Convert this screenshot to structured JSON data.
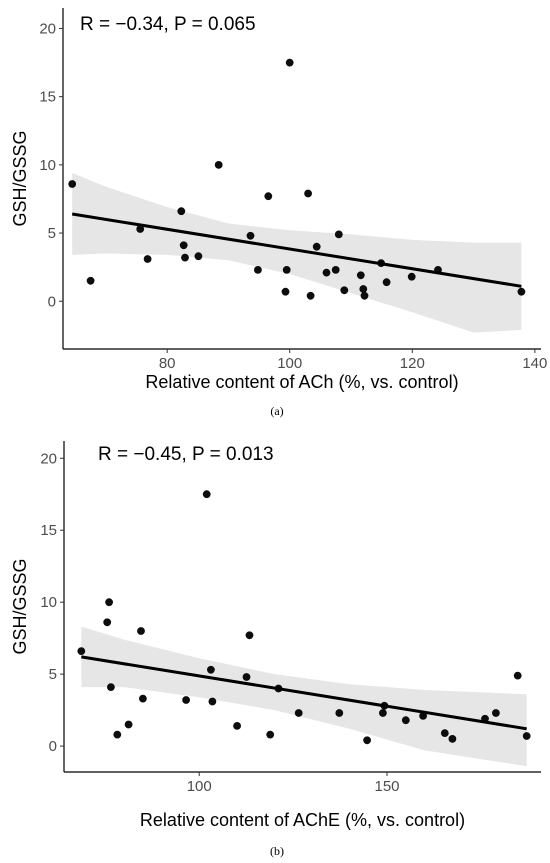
{
  "chart_data": [
    {
      "type": "scatter",
      "panel_label": "(a)",
      "annotation": "R = −0.34, P = 0.065",
      "xlabel": "Relative content of ACh (%, vs. control)",
      "ylabel": "GSH/GSSG",
      "xlim": [
        63,
        141
      ],
      "ylim": [
        -3.5,
        21.5
      ],
      "xticks": [
        80,
        100,
        120,
        140
      ],
      "yticks": [
        0,
        5,
        10,
        15,
        20
      ],
      "trend": {
        "x": [
          64.5,
          137.8
        ],
        "y": [
          6.4,
          1.1
        ]
      },
      "band": {
        "x": [
          64.5,
          70,
          80,
          90,
          100,
          110,
          120,
          130,
          137.8
        ],
        "lower": [
          3.4,
          3.5,
          3.4,
          3.0,
          2.0,
          0.6,
          -0.8,
          -2.3,
          -2.1
        ],
        "upper": [
          9.4,
          8.4,
          6.9,
          5.7,
          5.2,
          4.9,
          4.5,
          4.3,
          4.3
        ]
      },
      "points": [
        [
          64.5,
          8.6
        ],
        [
          67.5,
          1.5
        ],
        [
          75.6,
          5.3
        ],
        [
          76.8,
          3.1
        ],
        [
          82.3,
          6.6
        ],
        [
          82.7,
          4.1
        ],
        [
          82.9,
          3.2
        ],
        [
          85.1,
          3.3
        ],
        [
          88.4,
          10.0
        ],
        [
          93.6,
          4.8
        ],
        [
          94.8,
          2.3
        ],
        [
          96.5,
          7.7
        ],
        [
          99.3,
          0.7
        ],
        [
          99.5,
          2.3
        ],
        [
          100.0,
          17.5
        ],
        [
          103.0,
          7.9
        ],
        [
          103.4,
          0.4
        ],
        [
          104.4,
          4.0
        ],
        [
          106.0,
          2.1
        ],
        [
          107.5,
          2.3
        ],
        [
          108.0,
          4.9
        ],
        [
          108.9,
          0.8
        ],
        [
          111.6,
          1.9
        ],
        [
          112.0,
          0.9
        ],
        [
          112.2,
          0.4
        ],
        [
          114.9,
          2.8
        ],
        [
          115.8,
          1.4
        ],
        [
          119.9,
          1.8
        ],
        [
          124.2,
          2.3
        ],
        [
          137.8,
          0.7
        ]
      ],
      "colors": {
        "points": "#000000",
        "line": "#000000",
        "band": "#e6e6e6"
      }
    },
    {
      "type": "scatter",
      "panel_label": "(b)",
      "annotation": "R = −0.45, P = 0.013",
      "xlabel": "Relative content of AChE (%, vs. control)",
      "ylabel": "GSH/GSSG",
      "xlim": [
        64,
        191
      ],
      "ylim": [
        -1.8,
        21.2
      ],
      "xticks": [
        100,
        150
      ],
      "yticks": [
        0,
        5,
        10,
        15,
        20
      ],
      "trend": {
        "x": [
          68.6,
          187.2
        ],
        "y": [
          6.2,
          1.2
        ]
      },
      "band": {
        "x": [
          68.6,
          80,
          100,
          120,
          140,
          160,
          187.2
        ],
        "lower": [
          4.1,
          4.1,
          3.4,
          2.5,
          1.2,
          -0.3,
          -1.4
        ],
        "upper": [
          8.3,
          7.4,
          6.1,
          5.0,
          4.3,
          3.9,
          3.6
        ]
      },
      "points": [
        [
          68.6,
          6.6
        ],
        [
          75.5,
          8.6
        ],
        [
          76.0,
          10.0
        ],
        [
          76.5,
          4.1
        ],
        [
          78.2,
          0.8
        ],
        [
          81.2,
          1.5
        ],
        [
          84.5,
          8.0
        ],
        [
          85.0,
          3.3
        ],
        [
          96.5,
          3.2
        ],
        [
          102.0,
          17.5
        ],
        [
          103.1,
          5.3
        ],
        [
          103.5,
          3.1
        ],
        [
          110.1,
          1.4
        ],
        [
          112.6,
          4.8
        ],
        [
          113.4,
          7.7
        ],
        [
          118.9,
          0.8
        ],
        [
          121.1,
          4.0
        ],
        [
          126.5,
          2.3
        ],
        [
          137.3,
          2.3
        ],
        [
          144.7,
          0.4
        ],
        [
          148.9,
          2.3
        ],
        [
          149.3,
          2.8
        ],
        [
          155.0,
          1.8
        ],
        [
          159.6,
          2.1
        ],
        [
          165.4,
          0.9
        ],
        [
          167.4,
          0.5
        ],
        [
          176.1,
          1.9
        ],
        [
          179.0,
          2.3
        ],
        [
          184.8,
          4.9
        ],
        [
          187.2,
          0.7
        ]
      ],
      "colors": {
        "points": "#000000",
        "line": "#000000",
        "band": "#e6e6e6"
      }
    }
  ]
}
